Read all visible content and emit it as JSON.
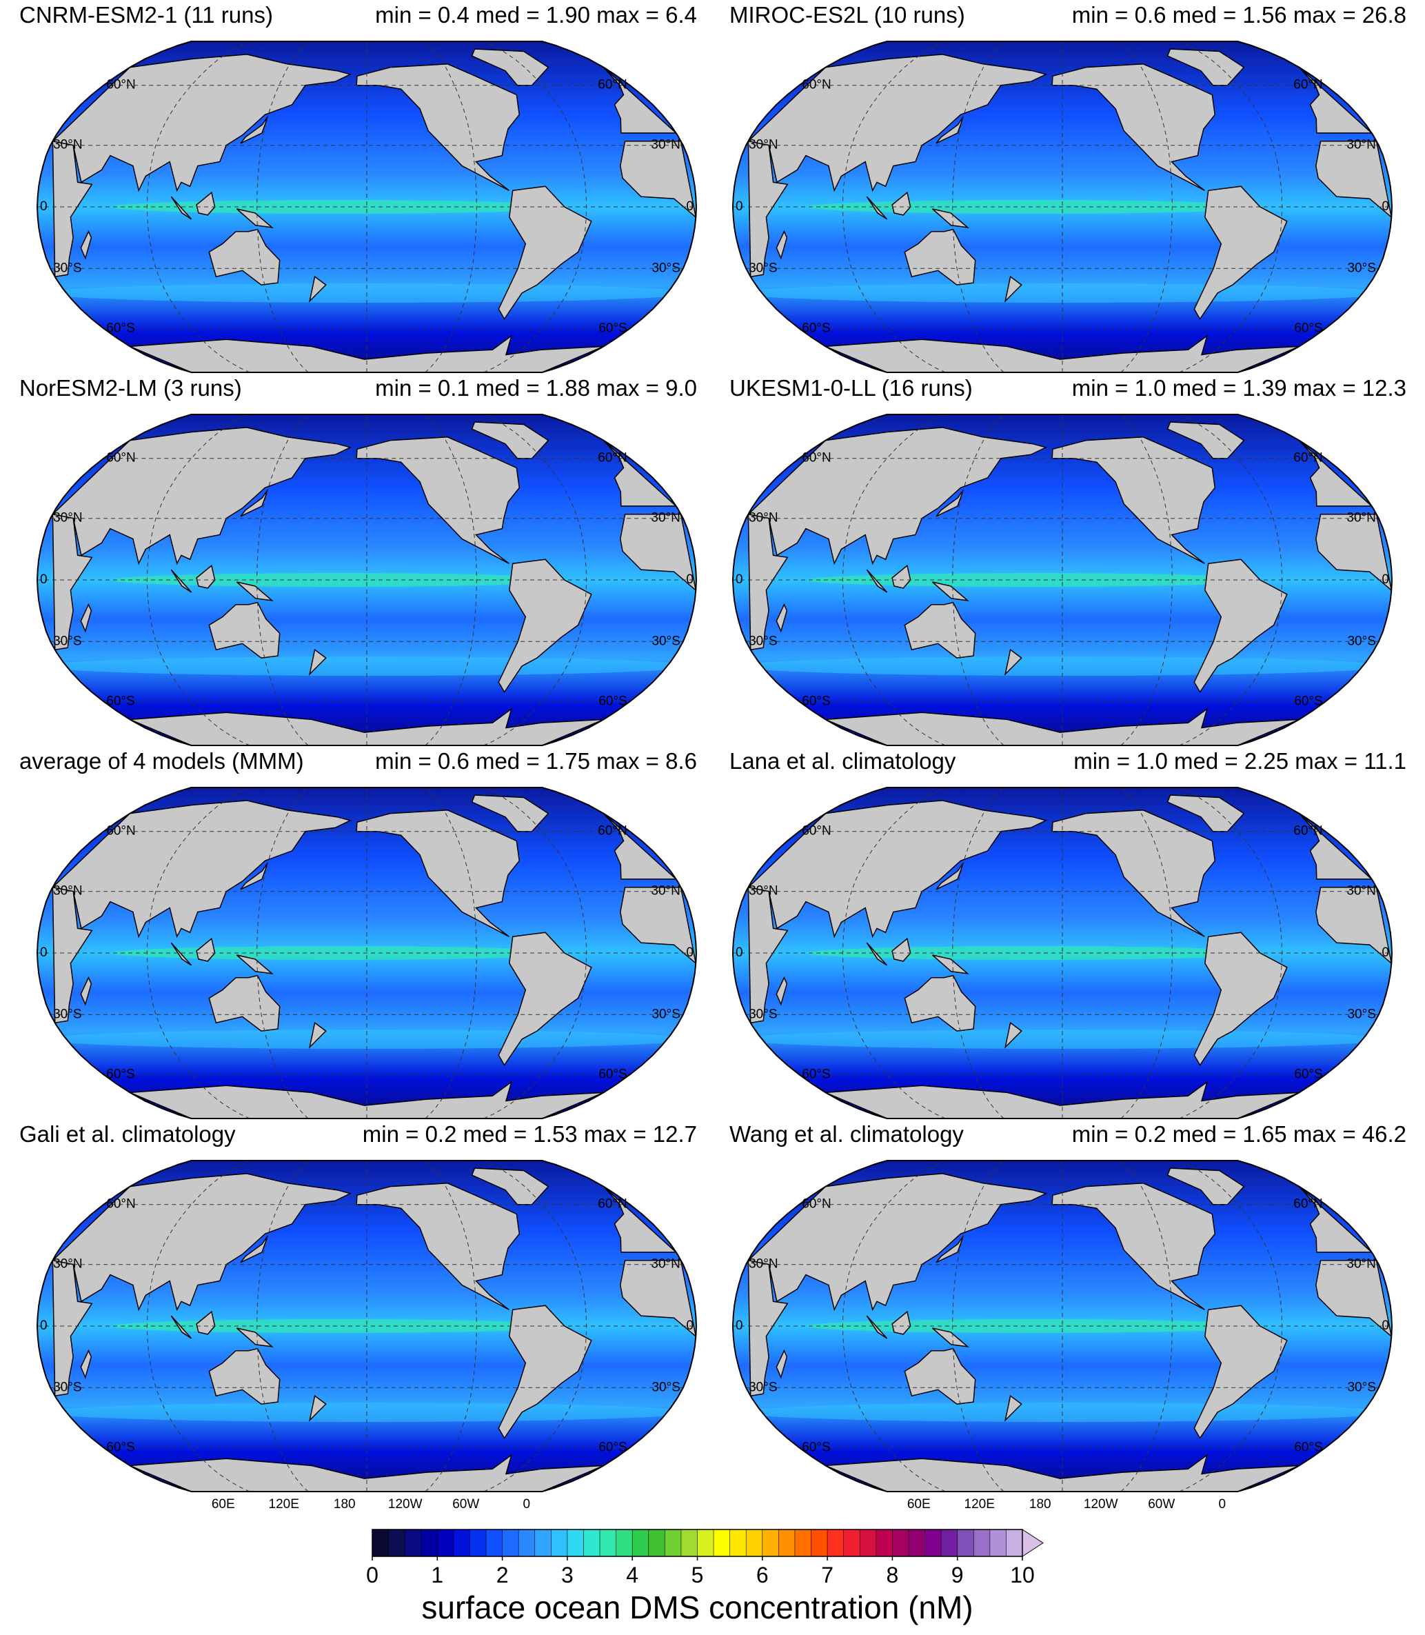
{
  "panels": [
    {
      "title": "CNRM-ESM2-1 (11 runs)",
      "stats": "min = 0.4 med = 1.90 max = 6.4"
    },
    {
      "title": "MIROC-ES2L (10 runs)",
      "stats": "min = 0.6 med = 1.56 max = 26.8"
    },
    {
      "title": "NorESM2-LM (3 runs)",
      "stats": "min = 0.1 med = 1.88 max = 9.0"
    },
    {
      "title": "UKESM1-0-LL (16 runs)",
      "stats": "min = 1.0 med = 1.39 max = 12.3"
    },
    {
      "title": "average of 4 models (MMM)",
      "stats": "min = 0.6 med = 1.75 max = 8.6"
    },
    {
      "title": "Lana et al. climatology",
      "stats": "min = 1.0 med = 2.25 max = 11.1"
    },
    {
      "title": "Gali et al. climatology",
      "stats": "min = 0.2 med = 1.53 max = 12.7"
    },
    {
      "title": "Wang et al. climatology",
      "stats": "min = 0.2 med = 1.65 max = 46.2"
    }
  ],
  "lat_ticks": [
    {
      "value": 60,
      "label": "60°N"
    },
    {
      "value": 30,
      "label": "30°N"
    },
    0,
    {
      "value": -30,
      "label": "30°S"
    },
    {
      "value": -60,
      "label": "60°S"
    }
  ],
  "lon_ticks": [
    {
      "value": 60,
      "label": "60E"
    },
    {
      "value": 120,
      "label": "120E"
    },
    180,
    {
      "value": -120,
      "label": "120W"
    },
    {
      "value": -60,
      "label": "60W"
    },
    0
  ],
  "colorbar": {
    "lim": [
      0,
      10
    ],
    "ticks": [
      0,
      1,
      2,
      3,
      4,
      5,
      6,
      7,
      8,
      9,
      10
    ],
    "colors": [
      "#0a0a30",
      "#0d0d55",
      "#0a0a80",
      "#0000a0",
      "#0000c0",
      "#0010dd",
      "#0530f0",
      "#1050ff",
      "#1e6cff",
      "#2a88ff",
      "#30a4ff",
      "#30c0ff",
      "#30d8f0",
      "#30e8d0",
      "#30e8b0",
      "#30dc80",
      "#30cc50",
      "#40c030",
      "#70d030",
      "#a0dc30",
      "#d8f020",
      "#ffff00",
      "#ffe800",
      "#ffd000",
      "#ffb000",
      "#ff9000",
      "#ff7000",
      "#ff5000",
      "#ff3020",
      "#f02030",
      "#d81040",
      "#c00050",
      "#a80060",
      "#900070",
      "#800090",
      "#7020a0",
      "#8050b8",
      "#9870c8",
      "#b090d8",
      "#c8b0e0"
    ],
    "over_color": "#d8c0e8",
    "label": "surface ocean DMS concentration (nM)"
  }
}
